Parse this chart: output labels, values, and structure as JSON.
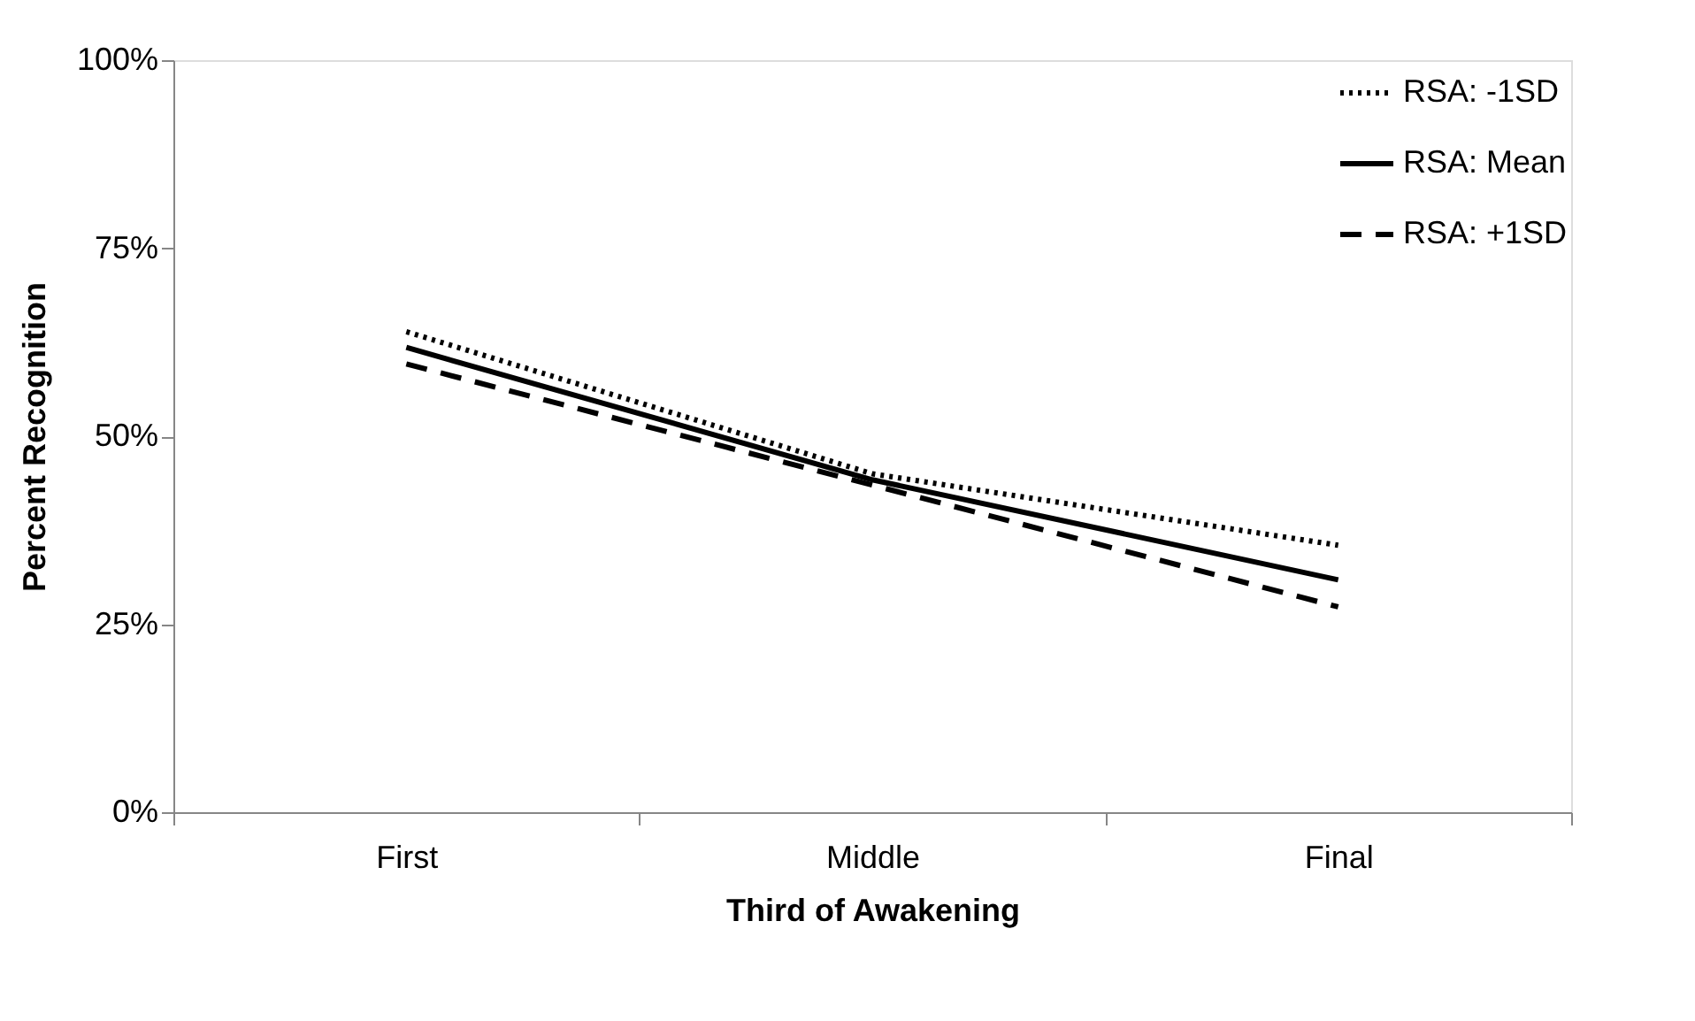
{
  "chart_data": {
    "type": "line",
    "xlabel": "Third of Awakening",
    "ylabel": "Percent Recognition",
    "categories": [
      "First",
      "Middle",
      "Final"
    ],
    "series": [
      {
        "name": "RSA: -1SD",
        "color": "#000000",
        "line_style": "dotted",
        "values": [
          63.9,
          45.0,
          35.5
        ]
      },
      {
        "name": "RSA: Mean",
        "color": "#000000",
        "line_style": "solid",
        "values": [
          61.8,
          44.2,
          30.9
        ]
      },
      {
        "name": "RSA: +1SD",
        "color": "#000000",
        "line_style": "dashed",
        "values": [
          59.6,
          43.5,
          27.3
        ]
      }
    ],
    "ylim": [
      0,
      100
    ],
    "yticks": [
      {
        "value": 0,
        "label": "0%"
      },
      {
        "value": 25,
        "label": "25%"
      },
      {
        "value": 50,
        "label": "50%"
      },
      {
        "value": 75,
        "label": "75%"
      },
      {
        "value": 100,
        "label": "100%"
      }
    ],
    "grid": false,
    "legend": "top right",
    "marker": "none"
  }
}
